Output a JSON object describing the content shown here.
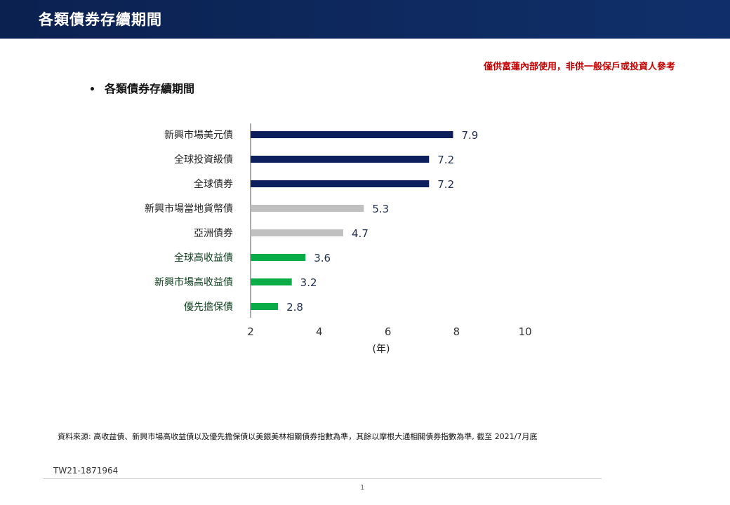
{
  "header": {
    "title": "各類債券存續期間"
  },
  "notice": "僅供富蓮內部使用，非供一般保戶或投資人參考",
  "bullet": {
    "symbol": "•",
    "text": "各類債券存續期間"
  },
  "chart_data": {
    "type": "bar",
    "orientation": "horizontal",
    "categories": [
      "新興市場美元債",
      "全球投資級債",
      "全球債券",
      "新興市場當地貨幣債",
      "亞洲債券",
      "全球高收益債",
      "新興市場高收益債",
      "優先擔保債"
    ],
    "values": [
      7.9,
      7.2,
      7.2,
      5.3,
      4.7,
      3.6,
      3.2,
      2.8
    ],
    "value_labels": [
      "7.9",
      "7.2",
      "7.2",
      "5.3",
      "4.7",
      "3.6",
      "3.2",
      "2.8"
    ],
    "bar_colors": [
      "#0d1f5c",
      "#0d1f5c",
      "#0d1f5c",
      "#c0c0c0",
      "#c0c0c0",
      "#0aac48",
      "#0aac48",
      "#0aac48"
    ],
    "label_colors": [
      "#222222",
      "#222222",
      "#222222",
      "#222222",
      "#222222",
      "#0b3d1a",
      "#0b3d1a",
      "#0b3d1a"
    ],
    "xlim": [
      2,
      10
    ],
    "xticks": [
      "2",
      "4",
      "6",
      "8",
      "10"
    ],
    "xlabel": "(年)",
    "grid": false
  },
  "source": "資料來源: 高收益債、新興市場高收益債以及優先擔保債以美銀美林相關債券指數為準，其餘以摩根大通相關債券指數為準, 截至 2021/7月底",
  "doc_id": "TW21-1871964",
  "page_number": "1"
}
